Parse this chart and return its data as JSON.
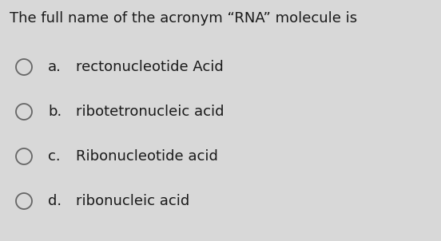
{
  "title": "The full name of the acronym “RNA” molecule is",
  "options": [
    {
      "letter": "a.",
      "text": "rectonucleotide Acid"
    },
    {
      "letter": "b.",
      "text": "ribotetronucleic acid"
    },
    {
      "letter": "c.",
      "text": "Ribonucleotide acid"
    },
    {
      "letter": "d.",
      "text": "ribonucleic acid"
    }
  ],
  "background_color": "#d8d8d8",
  "text_color": "#1a1a1a",
  "title_fontsize": 13.0,
  "option_fontsize": 13.0,
  "circle_color": "#666666"
}
